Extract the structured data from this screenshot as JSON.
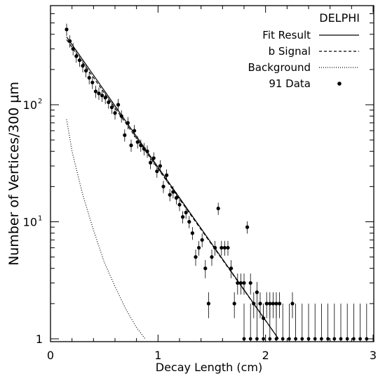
{
  "chart_data": {
    "type": "scatter",
    "title": "DELPHI",
    "xlabel": "Decay Length (cm)",
    "ylabel": "Number of Vertices/300 μm",
    "xlim": [
      0,
      3
    ],
    "ylim": [
      1,
      600
    ],
    "yscale": "log",
    "grid": false,
    "legend_position": "top-right",
    "x_ticks": [
      {
        "value": 0,
        "label": "0"
      },
      {
        "value": 1,
        "label": "1"
      },
      {
        "value": 2,
        "label": "2"
      },
      {
        "value": 3,
        "label": "3"
      }
    ],
    "y_ticks": [
      {
        "value": 1,
        "label": "1"
      },
      {
        "value": 10,
        "label": "10",
        "sup": "1"
      },
      {
        "value": 100,
        "label": "10",
        "sup": "2"
      }
    ],
    "legend": [
      {
        "label": "Fit Result",
        "style": "solid"
      },
      {
        "label": "b Signal",
        "style": "dashed"
      },
      {
        "label": "Background",
        "style": "dotted"
      },
      {
        "label": "91 Data",
        "style": "marker"
      }
    ],
    "series": [
      {
        "name": "Fit Result",
        "style": "solid",
        "x": [
          0.15,
          2.12
        ],
        "y": [
          380,
          1
        ]
      },
      {
        "name": "b Signal",
        "style": "dashed",
        "x": [
          0.15,
          2.12
        ],
        "y": [
          360,
          1
        ]
      },
      {
        "name": "Background",
        "style": "dotted",
        "x": [
          0.15,
          0.2,
          0.3,
          0.4,
          0.5,
          0.6,
          0.7,
          0.8,
          0.88
        ],
        "y": [
          75,
          40,
          17,
          8.5,
          4.5,
          2.8,
          1.8,
          1.25,
          1
        ]
      },
      {
        "name": "91 Data",
        "style": "marker",
        "x": [
          0.15,
          0.18,
          0.21,
          0.24,
          0.27,
          0.3,
          0.33,
          0.36,
          0.39,
          0.42,
          0.45,
          0.48,
          0.51,
          0.54,
          0.57,
          0.6,
          0.63,
          0.66,
          0.69,
          0.72,
          0.75,
          0.78,
          0.81,
          0.84,
          0.87,
          0.9,
          0.93,
          0.96,
          0.99,
          1.02,
          1.05,
          1.08,
          1.11,
          1.14,
          1.17,
          1.2,
          1.23,
          1.26,
          1.29,
          1.32,
          1.35,
          1.38,
          1.41,
          1.44,
          1.47,
          1.5,
          1.53,
          1.56,
          1.59,
          1.62,
          1.65,
          1.68,
          1.71,
          1.74,
          1.77,
          1.8,
          1.83,
          1.86,
          1.89,
          1.92,
          1.95,
          1.98,
          2.01,
          2.04,
          2.07,
          2.1,
          2.13,
          2.25
        ],
        "y": [
          440,
          350,
          300,
          260,
          240,
          215,
          195,
          170,
          155,
          130,
          125,
          120,
          115,
          105,
          95,
          85,
          100,
          80,
          55,
          70,
          45,
          60,
          48,
          45,
          42,
          40,
          32,
          35,
          27,
          30,
          20,
          25,
          17,
          18,
          16,
          14,
          11,
          12,
          10,
          8,
          5,
          6,
          7,
          4,
          2,
          5,
          6,
          13,
          6,
          6,
          6,
          4,
          2,
          3,
          3,
          3,
          9,
          3,
          2,
          2.5,
          2,
          1.5,
          2,
          2,
          2,
          2,
          2,
          2
        ]
      }
    ]
  }
}
